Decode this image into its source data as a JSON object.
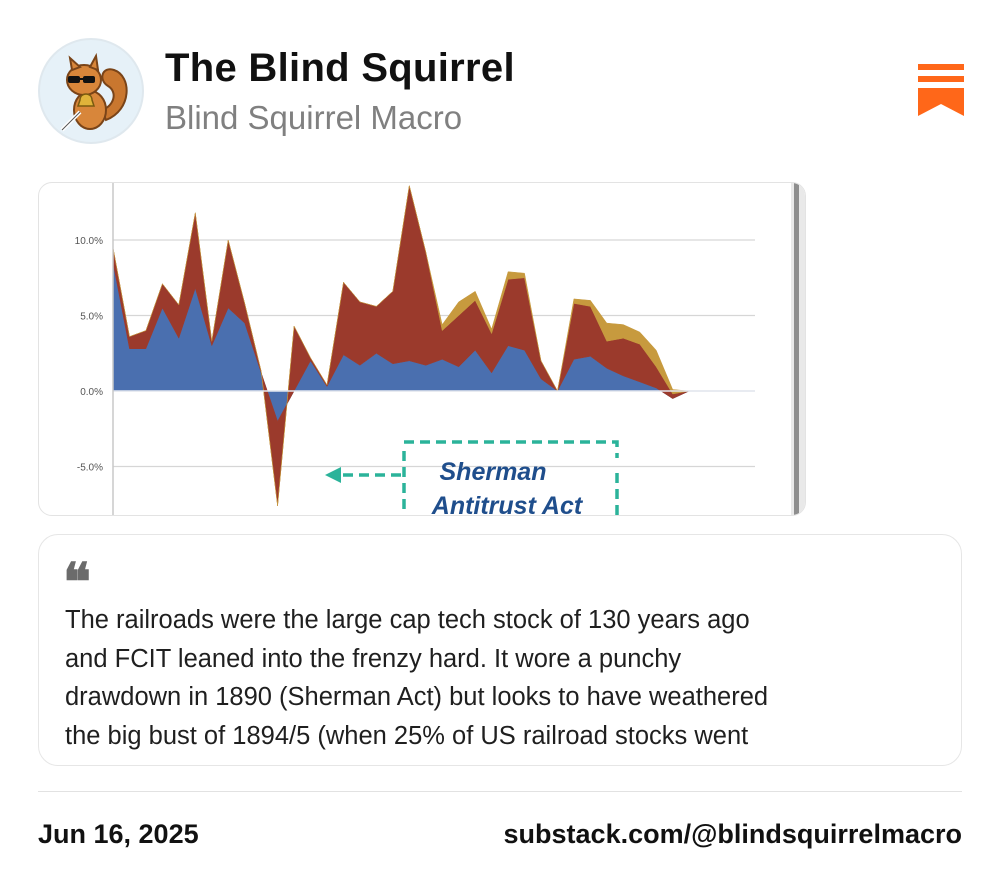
{
  "header": {
    "title": "The Blind Squirrel",
    "subtitle": "Blind Squirrel Macro",
    "avatar_icon": "squirrel-mascot-icon",
    "bookmark_icon": "bookmark-icon",
    "accent_color": "#ff6719"
  },
  "chart_data": {
    "type": "area",
    "title": "",
    "xlabel": "",
    "ylabel": "",
    "ylim": [
      -7.5,
      13.5
    ],
    "yticks": [
      10.0,
      5.0,
      0.0,
      -5.0
    ],
    "ytick_labels": [
      "10.0%",
      "5.0%",
      "0.0%",
      "-5.0%"
    ],
    "grid": true,
    "x": [
      0,
      1,
      2,
      3,
      4,
      5,
      6,
      7,
      8,
      9,
      10,
      11,
      12,
      13,
      14,
      15,
      16,
      17,
      18,
      19,
      20,
      21,
      22,
      23,
      24,
      25,
      26,
      27,
      28,
      29,
      30,
      31,
      32,
      33,
      34,
      35,
      36,
      37,
      38,
      39
    ],
    "series": [
      {
        "color": "#4a6faf",
        "values": [
          8.5,
          2.8,
          2.8,
          5.5,
          3.5,
          6.8,
          3.0,
          5.5,
          4.5,
          1.2,
          -2.0,
          0,
          2.0,
          0.3,
          2.4,
          1.7,
          2.5,
          1.8,
          2.0,
          1.7,
          2.1,
          1.6,
          2.7,
          1.2,
          3.0,
          2.7,
          0.8,
          0,
          2.1,
          2.3,
          1.5,
          1.0,
          0.6,
          0.2,
          -0.5,
          0,
          0,
          0,
          0,
          0
        ]
      },
      {
        "color": "#9b3a2c",
        "values": [
          1.0,
          0.8,
          1.2,
          1.6,
          2.2,
          5.0,
          0.3,
          4.5,
          1.3,
          0.1,
          -5.6,
          4.3,
          0.2,
          0.1,
          4.8,
          4.2,
          3.1,
          4.8,
          11.6,
          7.5,
          1.9,
          3.4,
          3.3,
          2.6,
          4.4,
          4.8,
          1.2,
          0,
          3.7,
          3.3,
          1.8,
          2.5,
          2.5,
          1.4,
          0.3,
          0,
          0,
          0,
          0,
          0
        ]
      },
      {
        "color": "#c79a3e",
        "values": [
          0,
          0,
          0,
          0,
          0,
          0,
          0,
          0,
          0,
          0,
          0,
          0,
          0,
          0,
          0,
          0,
          0,
          0,
          0,
          0,
          0.4,
          0.9,
          0.6,
          0.3,
          0.5,
          0.3,
          0,
          0,
          0.3,
          0.4,
          1.2,
          0.9,
          0.8,
          1.1,
          0.3,
          0,
          0,
          0,
          0,
          0
        ]
      }
    ],
    "annotation": {
      "line1": "Sherman",
      "line2": "Antitrust Act",
      "color": "#2bb39a",
      "text_color": "#1f4e8c"
    }
  },
  "quote": {
    "icon": "quote-icon",
    "glyph": "❝",
    "lines": [
      "The railroads were the large cap tech stock of 130 years ago",
      "and FCIT leaned into the frenzy hard. It wore a punchy",
      "drawdown in 1890 (Sherman Act) but looks to have weathered",
      "the big bust of 1894/5 (when 25% of US railroad stocks went"
    ]
  },
  "footer": {
    "date": "Jun 16, 2025",
    "handle": "substack.com/@blindsquirrelmacro"
  }
}
